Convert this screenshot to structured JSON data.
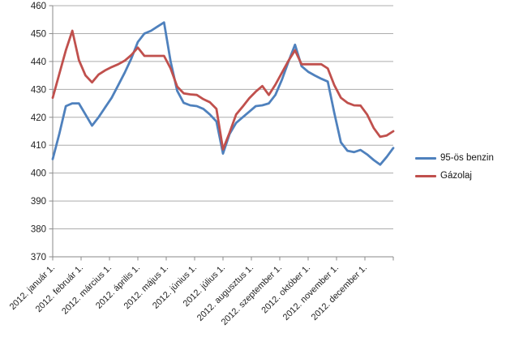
{
  "chart_data": {
    "type": "line",
    "title": "",
    "frequency": "weekly",
    "x_labels": [
      "2012. január 1.",
      "2012. február 1.",
      "2012. március 1.",
      "2012. április 1.",
      "2012. május 1.",
      "2012. június 1.",
      "2012. július 1.",
      "2012. augusztus 1.",
      "2012. szeptember 1.",
      "2012. október 1.",
      "2012. november 1.",
      "2012. december 1."
    ],
    "x_label_rotation": -45,
    "y_ticks": [
      370,
      380,
      390,
      400,
      410,
      420,
      430,
      440,
      450,
      460
    ],
    "ylim": [
      370,
      460
    ],
    "grid": "horizontal-major",
    "legend_position": "right",
    "series": [
      {
        "name": "95-ös benzin",
        "color": "#4F81BD",
        "values": [
          405,
          414,
          424,
          425,
          425,
          421,
          417,
          420,
          423.5,
          427,
          431.5,
          436,
          441,
          447,
          450,
          451,
          452.5,
          454,
          440,
          429.5,
          425.2,
          424.3,
          424,
          423,
          421,
          418.5,
          407,
          414,
          418,
          420,
          422,
          424,
          424.3,
          425,
          428,
          433.5,
          440,
          446,
          438.3,
          436.3,
          435,
          433.8,
          432.8,
          421.5,
          411,
          408,
          407.5,
          408.3,
          406.7,
          404.7,
          403,
          405.8,
          409
        ]
      },
      {
        "name": "Gázolaj",
        "color": "#C0504D",
        "values": [
          427,
          435.5,
          444,
          451,
          440.5,
          435,
          432.5,
          435.3,
          436.8,
          438,
          439,
          440.3,
          442.3,
          445,
          442,
          442,
          442,
          442,
          437.5,
          431,
          428.6,
          428.2,
          428,
          426.5,
          425.4,
          423,
          408.5,
          414.5,
          421,
          423.8,
          426.8,
          429.2,
          431.2,
          428,
          431.7,
          436,
          440.3,
          444,
          439,
          439,
          439,
          439,
          437.5,
          431.5,
          427,
          425.2,
          424.3,
          424.2,
          421,
          416.2,
          413,
          413.5,
          415
        ]
      }
    ]
  },
  "colors": {
    "gridline": "#ACACAC",
    "axis": "#8A8A8A",
    "text": "#1F1F1F",
    "background": "#FFFFFF"
  }
}
